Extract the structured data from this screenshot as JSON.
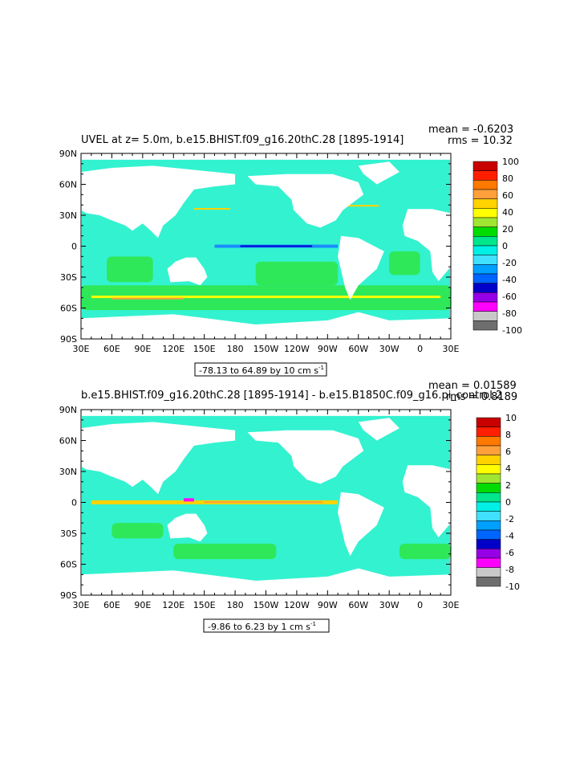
{
  "panels": [
    {
      "title": "UVEL at z=    5.0m, b.e15.BHIST.f09_g16.20thC.28  [1895-1914]",
      "stats": {
        "mean": "mean = -0.6203",
        "rms": "rms = 10.32"
      },
      "range_note": "-78.13 to 64.89 by 10 cm s",
      "range_unit_exp": "-1",
      "colorbar": {
        "labels": [
          "100",
          "80",
          "60",
          "40",
          "20",
          "0",
          "-20",
          "-40",
          "-60",
          "-80",
          "-100"
        ],
        "colors": [
          "#c80000",
          "#ff1e00",
          "#ff7800",
          "#ffa03c",
          "#ffd200",
          "#ffff00",
          "#a0e632",
          "#00dc00",
          "#00e68c",
          "#00f0e6",
          "#40e0ff",
          "#00a0ff",
          "#0064ff",
          "#0000c8",
          "#9600e6",
          "#ff00ff",
          "#c8c8c8",
          "#6e6e6e"
        ]
      }
    },
    {
      "title": "b.e15.BHIST.f09_g16.20thC.28  [1895-1914] - b.e15.B1850C.f09_g16.pi_control.2",
      "stats": {
        "mean": "mean = 0.01589",
        "rms": "rms = 0.8189"
      },
      "range_note": "-9.86 to 6.23 by 1 cm s",
      "range_unit_exp": "-1",
      "colorbar": {
        "labels": [
          "10",
          "8",
          "6",
          "4",
          "2",
          "0",
          "-2",
          "-4",
          "-6",
          "-8",
          "-10"
        ],
        "colors": [
          "#c80000",
          "#ff1e00",
          "#ff7800",
          "#ffa03c",
          "#ffd200",
          "#ffff00",
          "#a0e632",
          "#00dc00",
          "#00e68c",
          "#00f0e6",
          "#40e0ff",
          "#00a0ff",
          "#0064ff",
          "#0000c8",
          "#9600e6",
          "#ff00ff",
          "#c8c8c8",
          "#6e6e6e"
        ]
      }
    }
  ],
  "axes": {
    "x_ticks": [
      "30E",
      "60E",
      "90E",
      "120E",
      "150E",
      "180",
      "150W",
      "120W",
      "90W",
      "60W",
      "30W",
      "0",
      "30E"
    ],
    "y_ticks": [
      "90N",
      "60N",
      "30N",
      "0",
      "30S",
      "60S",
      "90S"
    ]
  },
  "chart_data": [
    {
      "type": "heatmap",
      "title": "UVEL at z=    5.0m, b.e15.BHIST.f09_g16.20thC.28  [1895-1914]",
      "x_ticks": [
        "30E",
        "60E",
        "90E",
        "120E",
        "150E",
        "180",
        "150W",
        "120W",
        "90W",
        "60W",
        "30W",
        "0",
        "30E"
      ],
      "y_ticks": [
        "90N",
        "60N",
        "30N",
        "0",
        "30S",
        "60S",
        "90S"
      ],
      "xlim": [
        30,
        390
      ],
      "ylim": [
        -90,
        90
      ],
      "colorbar_levels": [
        -100,
        -80,
        -60,
        -40,
        -20,
        0,
        20,
        40,
        60,
        80,
        100
      ],
      "data_min": -78.13,
      "data_max": 64.89,
      "contour_interval": 10,
      "units": "cm s-1",
      "mean": -0.6203,
      "rms": 10.32
    },
    {
      "type": "heatmap",
      "title": "b.e15.BHIST.f09_g16.20thC.28  [1895-1914] - b.e15.B1850C.f09_g16.pi_control.2",
      "x_ticks": [
        "30E",
        "60E",
        "90E",
        "120E",
        "150E",
        "180",
        "150W",
        "120W",
        "90W",
        "60W",
        "30W",
        "0",
        "30E"
      ],
      "y_ticks": [
        "90N",
        "60N",
        "30N",
        "0",
        "30S",
        "60S",
        "90S"
      ],
      "xlim": [
        30,
        390
      ],
      "ylim": [
        -90,
        90
      ],
      "colorbar_levels": [
        -10,
        -8,
        -6,
        -4,
        -2,
        0,
        2,
        4,
        6,
        8,
        10
      ],
      "data_min": -9.86,
      "data_max": 6.23,
      "contour_interval": 1,
      "units": "cm s-1",
      "mean": 0.01589,
      "rms": 0.8189
    }
  ]
}
